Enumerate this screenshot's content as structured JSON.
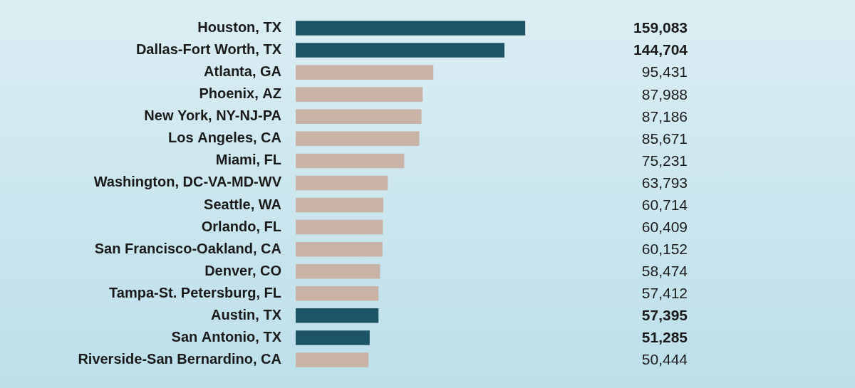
{
  "chart_data": {
    "type": "bar",
    "orientation": "horizontal",
    "categories": [
      "Houston, TX",
      "Dallas-Fort Worth, TX",
      "Atlanta, GA",
      "Phoenix, AZ",
      "New York, NY-NJ-PA",
      "Los Angeles, CA",
      "Miami, FL",
      "Washington, DC-VA-MD-WV",
      "Seattle, WA",
      "Orlando, FL",
      "San Francisco-Oakland, CA",
      "Denver, CO",
      "Tampa-St. Petersburg, FL",
      "Austin, TX",
      "San Antonio, TX",
      "Riverside-San Bernardino, CA"
    ],
    "values": [
      159083,
      144704,
      95431,
      87988,
      87186,
      85671,
      75231,
      63793,
      60714,
      60409,
      60152,
      58474,
      57412,
      57395,
      51285,
      50444
    ],
    "value_labels": [
      "159,083",
      "144,704",
      "95,431",
      "87,988",
      "87,186",
      "85,671",
      "75,231",
      "63,793",
      "60,714",
      "60,409",
      "60,152",
      "58,474",
      "57,412",
      "57,395",
      "51,285",
      "50,444"
    ],
    "colors": [
      "#1e5566",
      "#1e5566",
      "#c9b2a6",
      "#c9b2a6",
      "#c9b2a6",
      "#c9b2a6",
      "#c9b2a6",
      "#c9b2a6",
      "#c9b2a6",
      "#c9b2a6",
      "#c9b2a6",
      "#c9b2a6",
      "#c9b2a6",
      "#1e5566",
      "#1e5566",
      "#c9b2a6"
    ],
    "xlim": [
      0,
      200000
    ],
    "data_labels": true,
    "tick_labels": "y",
    "grid": false
  }
}
